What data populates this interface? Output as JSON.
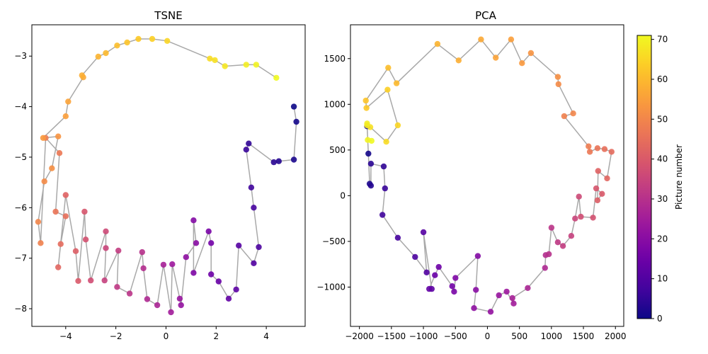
{
  "chart_data": [
    {
      "type": "scatter",
      "title": "TSNE",
      "xlabel": "",
      "ylabel": "",
      "xlim": [
        -5.35,
        5.55
      ],
      "ylim": [
        -8.35,
        -2.38
      ],
      "xticks": [
        -4,
        -2,
        0,
        2,
        4
      ],
      "yticks": [
        -8,
        -7,
        -6,
        -5,
        -4,
        -3
      ],
      "xtick_labels": [
        "−4",
        "−2",
        "0",
        "2",
        "4"
      ],
      "ytick_labels": [
        "−8",
        "−7",
        "−6",
        "−5",
        "−4",
        "−3"
      ],
      "connect_points": true,
      "line_color": "#a9a9a9",
      "colormap": "plasma",
      "color_values": [
        0,
        1,
        2,
        3,
        4,
        5,
        6,
        7,
        8,
        9,
        10,
        11,
        12,
        13,
        14,
        15,
        16,
        17,
        18,
        19,
        20,
        21,
        22,
        23,
        24,
        25,
        26,
        27,
        28,
        29,
        30,
        31,
        32,
        33,
        34,
        35,
        36,
        37,
        38,
        39,
        40,
        41,
        42,
        43,
        44,
        45,
        46,
        47,
        48,
        49,
        50,
        51,
        52,
        53,
        54,
        55,
        56,
        57,
        58,
        59,
        60,
        61,
        62,
        63,
        64,
        65,
        66,
        67,
        68,
        69,
        70,
        71
      ],
      "x": [
        5.1,
        5.2,
        5.1,
        4.5,
        4.3,
        3.3,
        3.2,
        3.4,
        3.5,
        3.7,
        3.5,
        2.9,
        2.8,
        2.5,
        2.1,
        1.8,
        1.8,
        1.7,
        1.1,
        1.1,
        1.2,
        0.8,
        0.6,
        0.55,
        0.25,
        0.2,
        -0.1,
        -0.35,
        -0.75,
        -0.9,
        -0.95,
        -1.45,
        -1.95,
        -1.9,
        -2.45,
        -2.4,
        -2.4,
        -3.0,
        -3.2,
        -3.25,
        -3.5,
        -3.6,
        -4.0,
        -4.3,
        -4.2,
        -4.0,
        -4.4,
        -4.25,
        -4.8,
        -5.0,
        -5.1,
        -4.85,
        -4.55,
        -4.3,
        -4.9,
        -4.0,
        -3.9,
        -3.3,
        -3.35,
        -2.7,
        -2.4,
        -1.95,
        -1.55,
        -1.1,
        -0.55,
        0.05,
        1.75,
        1.95,
        2.35,
        3.2,
        3.6,
        4.4
      ],
      "y": [
        -4.0,
        -4.3,
        -5.05,
        -5.08,
        -5.1,
        -4.73,
        -4.85,
        -5.6,
        -6.0,
        -6.78,
        -7.1,
        -6.75,
        -7.62,
        -7.8,
        -7.46,
        -7.32,
        -6.7,
        -6.47,
        -7.29,
        -6.25,
        -6.7,
        -6.98,
        -7.93,
        -7.8,
        -7.12,
        -8.07,
        -7.13,
        -7.93,
        -7.81,
        -7.2,
        -6.88,
        -7.7,
        -7.57,
        -6.85,
        -7.44,
        -6.8,
        -6.47,
        -7.44,
        -6.63,
        -6.08,
        -7.45,
        -6.86,
        -5.75,
        -7.18,
        -6.72,
        -6.17,
        -6.08,
        -4.92,
        -4.62,
        -6.7,
        -6.28,
        -5.48,
        -5.22,
        -4.59,
        -4.62,
        -4.19,
        -3.9,
        -3.42,
        -3.38,
        -3.01,
        -2.94,
        -2.79,
        -2.73,
        -2.66,
        -2.66,
        -2.7,
        -3.05,
        -3.08,
        -3.2,
        -3.17,
        -3.17,
        -3.43
      ]
    },
    {
      "type": "scatter",
      "title": "PCA",
      "xlabel": "",
      "ylabel": "",
      "xlim": [
        -2140,
        2130
      ],
      "ylim": [
        -1430,
        1870
      ],
      "xticks": [
        -2000,
        -1500,
        -1000,
        -500,
        0,
        500,
        1000,
        1500,
        2000
      ],
      "yticks": [
        -1000,
        -500,
        0,
        500,
        1000,
        1500
      ],
      "xtick_labels": [
        "−2000",
        "−1500",
        "−1000",
        "−500",
        "0",
        "500",
        "1000",
        "1500",
        "2000"
      ],
      "ytick_labels": [
        "−1000",
        "−500",
        "0",
        "500",
        "1000",
        "1500"
      ],
      "connect_points": true,
      "line_color": "#a9a9a9",
      "colormap": "plasma",
      "color_values": [
        0,
        1,
        2,
        3,
        4,
        5,
        6,
        7,
        8,
        9,
        10,
        11,
        12,
        13,
        14,
        15,
        16,
        17,
        18,
        19,
        20,
        21,
        22,
        23,
        24,
        25,
        26,
        27,
        28,
        29,
        30,
        31,
        32,
        33,
        34,
        35,
        36,
        37,
        38,
        39,
        40,
        41,
        42,
        43,
        44,
        45,
        46,
        47,
        48,
        49,
        50,
        51,
        52,
        53,
        54,
        55,
        56,
        57,
        58,
        59,
        60,
        61,
        62,
        63,
        64,
        65,
        66,
        67,
        68,
        69,
        70,
        71
      ],
      "x": [
        -1880,
        -1860,
        -1840,
        -1820,
        -1820,
        -1620,
        -1600,
        -1640,
        -1400,
        -1130,
        -950,
        -1000,
        -870,
        -910,
        -820,
        -760,
        -550,
        -520,
        -500,
        -150,
        -180,
        -210,
        50,
        180,
        300,
        410,
        390,
        630,
        900,
        910,
        960,
        1000,
        1100,
        1180,
        1310,
        1370,
        1430,
        1460,
        1650,
        1700,
        1790,
        1720,
        1730,
        1870,
        1940,
        1830,
        1720,
        1600,
        1580,
        1200,
        1340,
        1110,
        1100,
        680,
        540,
        370,
        130,
        -100,
        -450,
        -780,
        -1420,
        -1550,
        -1900,
        -1890,
        -1560,
        -1400,
        -1580,
        -1830,
        -1880,
        -1880,
        -1870,
        -1810
      ],
      "y": [
        760,
        460,
        130,
        110,
        350,
        320,
        80,
        -210,
        -460,
        -670,
        -840,
        -400,
        -1020,
        -1020,
        -870,
        -780,
        -990,
        -1050,
        -900,
        -660,
        -1030,
        -1230,
        -1270,
        -1090,
        -1050,
        -1180,
        -1120,
        -1010,
        -790,
        -650,
        -640,
        -350,
        -510,
        -550,
        -440,
        -250,
        -10,
        -230,
        -240,
        80,
        20,
        -50,
        270,
        190,
        480,
        510,
        520,
        480,
        540,
        870,
        900,
        1220,
        1300,
        1560,
        1450,
        1710,
        1510,
        1710,
        1480,
        1660,
        1230,
        1400,
        1040,
        960,
        1160,
        770,
        590,
        750,
        770,
        790,
        610,
        600
      ]
    }
  ],
  "colorbar": {
    "label": "Picture number",
    "min": 0,
    "max": 71,
    "ticks": [
      0,
      10,
      20,
      30,
      40,
      50,
      60,
      70
    ],
    "tick_labels": [
      "0",
      "10",
      "20",
      "30",
      "40",
      "50",
      "60",
      "70"
    ],
    "colormap": "plasma"
  },
  "colors": {
    "plasma_stops": [
      "#0d0887",
      "#46039f",
      "#7201a8",
      "#9c179e",
      "#bd3786",
      "#d8576b",
      "#ed7953",
      "#fb9f3a",
      "#fdca26",
      "#f0f921"
    ]
  }
}
